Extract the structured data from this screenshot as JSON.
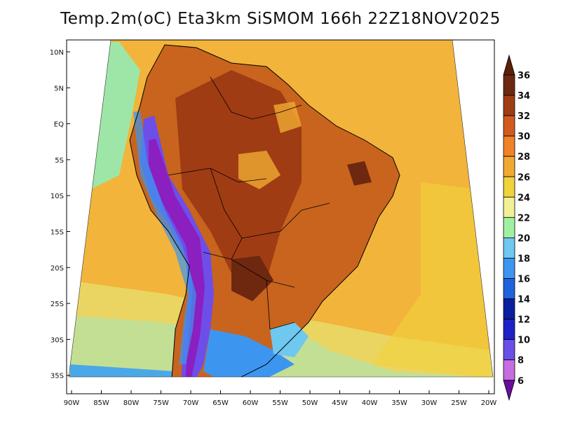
{
  "title": "Temp.2m(oC) Eta3km SiSMOM 166h 22Z18NOV2025",
  "map": {
    "lon_labels": [
      "90W",
      "85W",
      "80W",
      "75W",
      "70W",
      "65W",
      "60W",
      "55W",
      "50W",
      "45W",
      "40W",
      "35W",
      "30W",
      "25W",
      "20W"
    ],
    "lat_labels": [
      "10N",
      "5N",
      "EQ",
      "5S",
      "10S",
      "15S",
      "20S",
      "25S",
      "30S",
      "35S"
    ],
    "lon_range": [
      -90.5,
      -19.5
    ],
    "lat_range": [
      -38,
      11.5
    ]
  },
  "colorbar": {
    "labels": [
      "6",
      "8",
      "10",
      "12",
      "14",
      "16",
      "18",
      "20",
      "22",
      "24",
      "26",
      "28",
      "30",
      "32",
      "34",
      "36"
    ],
    "colors": [
      "#8b1fc0",
      "#c46ee0",
      "#6b4ee8",
      "#2020c8",
      "#0a1ea0",
      "#1e64dc",
      "#3c96f0",
      "#6ec8f0",
      "#a0f0a0",
      "#f0f096",
      "#f0d23c",
      "#f0aa32",
      "#f08228",
      "#d25a1e",
      "#a03c14",
      "#6e2810"
    ],
    "min_color": "#6a0d9a",
    "max_color": "#5a2008"
  }
}
